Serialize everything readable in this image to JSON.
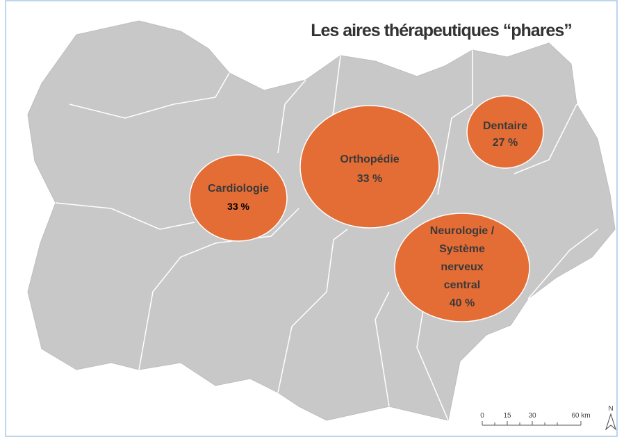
{
  "title": "Les aires thérapeutiques “phares”",
  "bubbles": [
    {
      "label": "Cardiologie",
      "value": "33 %"
    },
    {
      "label": "Orthopédie",
      "value": "33 %"
    },
    {
      "label": "Dentaire",
      "value": "27 %"
    },
    {
      "label_lines": [
        "Neurologie /",
        "Système",
        "nerveux",
        "central"
      ],
      "value": "40 %"
    }
  ],
  "scale": [
    "0",
    "15",
    "30",
    "60 km"
  ],
  "north": "N"
}
